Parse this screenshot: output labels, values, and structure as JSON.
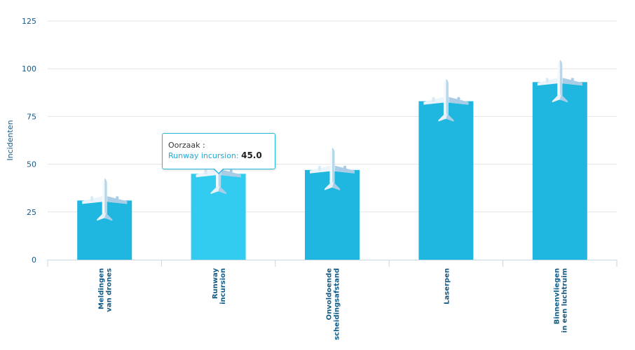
{
  "chart_data": {
    "type": "bar",
    "ylabel": "Incidenten",
    "ylim": [
      0,
      125
    ],
    "yticks": [
      0,
      25,
      50,
      75,
      100,
      125
    ],
    "categories": [
      [
        "Meldingen",
        "van drones"
      ],
      [
        "Runway",
        "incursion"
      ],
      [
        "Onvoldoende",
        "scheidingsafstand"
      ],
      [
        "Laserpen"
      ],
      [
        "Binnenvliegen",
        "in een luchtruim"
      ]
    ],
    "values": [
      31,
      45,
      47,
      83,
      93
    ],
    "grid": true,
    "bar_color": "#1fb7df",
    "highlight_color": "#32ccf0",
    "highlight_index": 1,
    "marker_icon": "airplane-icon"
  },
  "tooltip": {
    "title": "Oorzaak :",
    "series_label": "Runway incursion:",
    "value": "45.0"
  }
}
